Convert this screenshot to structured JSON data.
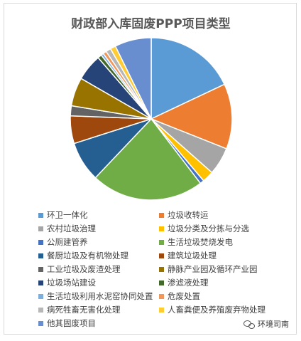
{
  "chart_data": {
    "type": "pie",
    "title": "财政部入库固废PPP项目类型",
    "legend_position": "bottom",
    "series": [
      {
        "name": "环卫一体化",
        "value": 18.0,
        "color": "#5B9BD5"
      },
      {
        "name": "垃圾收转运",
        "value": 13.0,
        "color": "#ED7D31"
      },
      {
        "name": "农村垃圾治理",
        "value": 5.5,
        "color": "#A5A5A5"
      },
      {
        "name": "垃圾分类及分拣与分选",
        "value": 2.3,
        "color": "#FFC000"
      },
      {
        "name": "公厕建管养",
        "value": 0.8,
        "color": "#4472C4"
      },
      {
        "name": "生活垃圾焚烧发电",
        "value": 22.5,
        "color": "#70AD47"
      },
      {
        "name": "餐厨垃圾及有机物处理",
        "value": 8.0,
        "color": "#255E91"
      },
      {
        "name": "建筑垃圾处理",
        "value": 5.5,
        "color": "#9E480E"
      },
      {
        "name": "工业垃圾及废渣处理",
        "value": 2.0,
        "color": "#636363"
      },
      {
        "name": "静脉产业园及循环产业园",
        "value": 5.7,
        "color": "#997300"
      },
      {
        "name": "垃圾场站建设",
        "value": 5.3,
        "color": "#264478"
      },
      {
        "name": "渗滤液处理",
        "value": 0.8,
        "color": "#43682B"
      },
      {
        "name": "生活垃圾利用水泥窑协同处置",
        "value": 0.5,
        "color": "#7CAFDD"
      },
      {
        "name": "危废处置",
        "value": 0.7,
        "color": "#F1975A"
      },
      {
        "name": "病死牲畜无害化处理",
        "value": 1.0,
        "color": "#B7B7B7"
      },
      {
        "name": "人畜粪便及养殖废弃物处理",
        "value": 1.1,
        "color": "#FFCD33"
      },
      {
        "name": "他其固废项目",
        "value": 7.3,
        "color": "#698ED0"
      }
    ]
  },
  "watermark": {
    "text": "环境司南",
    "icon": "wechat-icon"
  }
}
